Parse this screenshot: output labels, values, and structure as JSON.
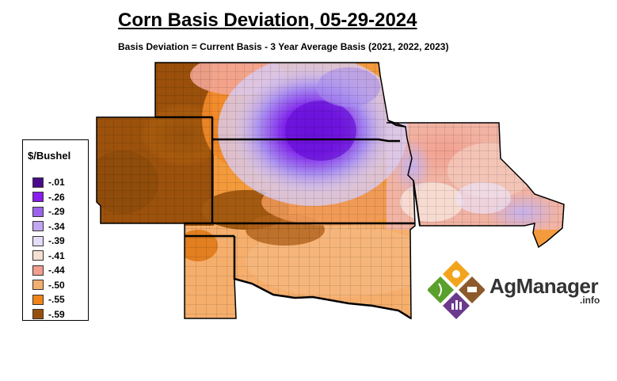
{
  "title": "Corn Basis Deviation, 05-29-2024",
  "subtitle": "Basis Deviation = Current Basis - 3 Year Average Basis (2021, 2022, 2023)",
  "legend": {
    "title": "$/Bushel",
    "items": [
      {
        "label": "-.01",
        "color": "#4b0a8c"
      },
      {
        "label": "-.26",
        "color": "#8a1cf0"
      },
      {
        "label": "-.29",
        "color": "#9b63ec"
      },
      {
        "label": "-.34",
        "color": "#c2a6f0"
      },
      {
        "label": "-.39",
        "color": "#e5dcf7"
      },
      {
        "label": "-.41",
        "color": "#f6e0d3"
      },
      {
        "label": "-.44",
        "color": "#f29d8e"
      },
      {
        "label": "-.50",
        "color": "#f4ae6e"
      },
      {
        "label": "-.55",
        "color": "#f18418"
      },
      {
        "label": "-.59",
        "color": "#97500b"
      }
    ]
  },
  "logo": {
    "text": "AgManager",
    "suffix": ".info"
  }
}
